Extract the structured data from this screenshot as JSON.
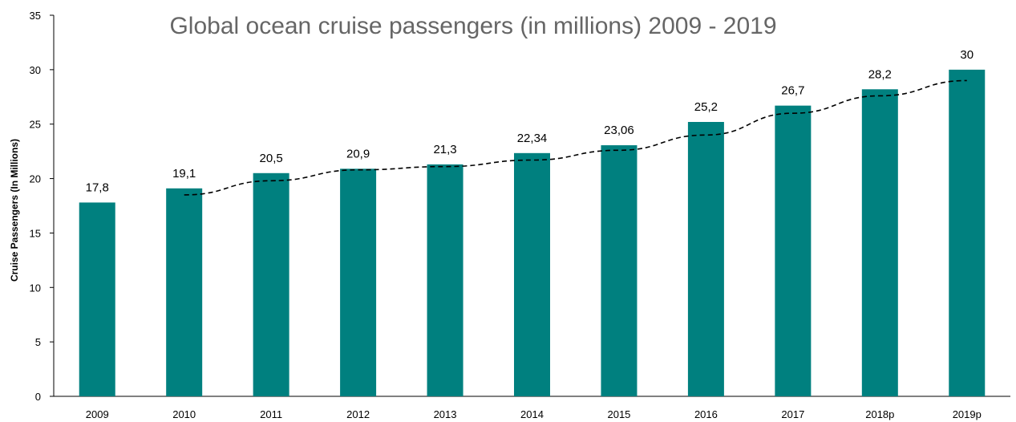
{
  "chart_data": {
    "type": "bar",
    "title": "Global ocean cruise passengers (in millions) 2009 - 2019",
    "xlabel": "",
    "ylabel": "Cruise Passengers (In Millions)",
    "categories": [
      "2009",
      "2010",
      "2011",
      "2012",
      "2013",
      "2014",
      "2015",
      "2016",
      "2017",
      "2018p",
      "2019p"
    ],
    "values": [
      17.8,
      19.1,
      20.5,
      20.9,
      21.3,
      22.34,
      23.06,
      25.2,
      26.7,
      28.2,
      30
    ],
    "data_labels": [
      "17,8",
      "19,1",
      "20,5",
      "20,9",
      "21,3",
      "22,34",
      "23,06",
      "25,2",
      "26,7",
      "28,2",
      "30"
    ],
    "ylim": [
      0,
      35
    ],
    "yticks": [
      0,
      5,
      10,
      15,
      20,
      25,
      30,
      35
    ],
    "grid": false,
    "bar_color": "#00807F",
    "trendline": {
      "type": "polynomial",
      "style": "dashed",
      "color": "#000000",
      "x_start": "2010",
      "x_end": "2019p",
      "values": [
        18.5,
        19.8,
        20.8,
        21.1,
        21.7,
        22.6,
        24.0,
        26.0,
        27.6,
        29.0
      ]
    }
  }
}
